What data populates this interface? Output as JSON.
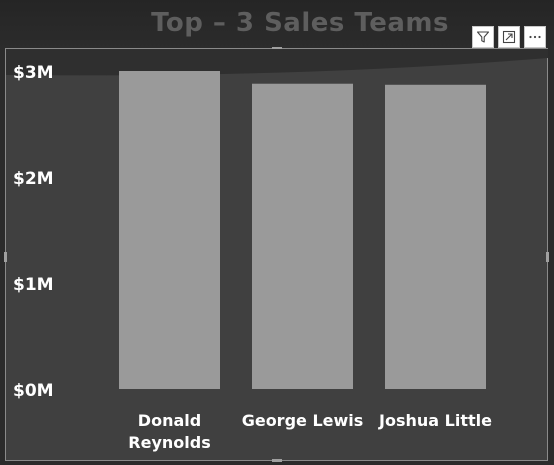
{
  "header": {
    "title": "Top – 3 Sales Teams"
  },
  "toolbar": {
    "icons": [
      "filter-icon",
      "focus-mode-icon",
      "more-options-icon"
    ]
  },
  "colors": {
    "bar": "#9a9a9a",
    "plot_background": "#404040",
    "text": "#ffffff",
    "title": "#5e5e5e"
  },
  "chart_data": {
    "type": "bar",
    "categories": [
      "Donald Reynolds",
      "George Lewis",
      "Joshua Little"
    ],
    "category_lines": [
      [
        "Donald",
        "Reynolds"
      ],
      [
        "George Lewis"
      ],
      [
        "Joshua Little"
      ]
    ],
    "values": [
      3.0,
      2.88,
      2.87
    ],
    "ylim": [
      0,
      3
    ],
    "yticks": [
      0,
      1,
      2,
      3
    ],
    "ytick_labels": [
      "$0M",
      "$1M",
      "$2M",
      "$3M"
    ],
    "xlabel": "",
    "ylabel": "",
    "grid": false,
    "legend": "none"
  }
}
